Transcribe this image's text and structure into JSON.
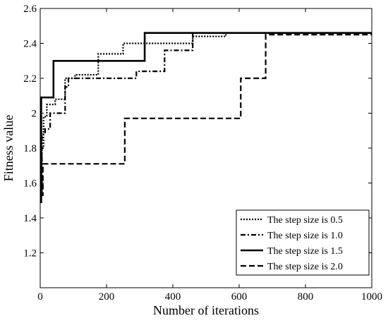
{
  "chart_data": {
    "type": "line",
    "xlabel": "Number of iterations",
    "ylabel": "Fitness value",
    "xlim": [
      0,
      1000
    ],
    "ylim": [
      1.0,
      2.6
    ],
    "xticks": [
      "0",
      "200",
      "400",
      "600",
      "800",
      "1000"
    ],
    "yticks": [
      "1.2",
      "1.4",
      "1.6",
      "1.8",
      "2",
      "2.2",
      "2.4",
      "2.6"
    ],
    "grid": false,
    "legend_position": "bottom-right",
    "series": [
      {
        "name": "The step size is 0.5",
        "style": "dotted",
        "x": [
          0,
          5,
          5,
          10,
          10,
          20,
          20,
          45,
          45,
          75,
          75,
          105,
          105,
          175,
          175,
          250,
          250,
          300,
          300,
          460,
          460,
          560,
          560,
          1000
        ],
        "y": [
          1.52,
          1.52,
          1.8,
          1.8,
          1.98,
          1.98,
          2.05,
          2.05,
          2.08,
          2.08,
          2.2,
          2.2,
          2.22,
          2.22,
          2.34,
          2.34,
          2.4,
          2.4,
          2.4,
          2.4,
          2.44,
          2.44,
          2.46,
          2.46
        ]
      },
      {
        "name": "The step size is 1.0",
        "style": "dashdot",
        "x": [
          0,
          5,
          5,
          15,
          15,
          30,
          30,
          75,
          75,
          85,
          85,
          290,
          290,
          325,
          325,
          375,
          375,
          460,
          460,
          1000
        ],
        "y": [
          1.55,
          1.55,
          1.88,
          1.88,
          1.91,
          1.91,
          2.0,
          2.0,
          2.15,
          2.15,
          2.2,
          2.2,
          2.24,
          2.24,
          2.24,
          2.24,
          2.36,
          2.36,
          2.46,
          2.46
        ]
      },
      {
        "name": "The step size is 1.5",
        "style": "solid",
        "x": [
          0,
          3,
          3,
          40,
          40,
          315,
          315,
          1000
        ],
        "y": [
          1.49,
          1.49,
          2.09,
          2.09,
          2.3,
          2.3,
          2.46,
          2.46
        ]
      },
      {
        "name": "The step size is 2.0",
        "style": "dashed",
        "x": [
          0,
          8,
          8,
          255,
          255,
          605,
          605,
          680,
          680,
          1000
        ],
        "y": [
          1.53,
          1.53,
          1.71,
          1.71,
          1.97,
          1.97,
          2.2,
          2.2,
          2.45,
          2.45
        ]
      }
    ]
  }
}
